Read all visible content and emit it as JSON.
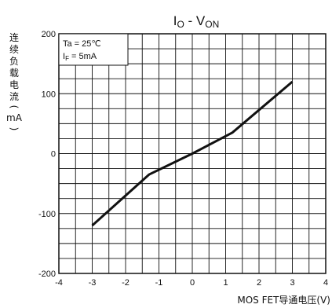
{
  "chart_data": {
    "type": "line",
    "title": {
      "main": "I",
      "sub1": "O",
      "sep": " - V",
      "sub2": "ON"
    },
    "ylabel": {
      "text": "连续负载电流",
      "unit": "mA"
    },
    "xlabel": "MOS FET导通电压(V)",
    "conditions": [
      {
        "prefix": "Ta = 25",
        "suffix": "℃",
        "sub": ""
      },
      {
        "prefix": "I",
        "sub": "F",
        "suffix": " = 5mA"
      }
    ],
    "xlim": [
      -4,
      4
    ],
    "ylim": [
      -200,
      200
    ],
    "xticks": [
      -4,
      -3,
      -2,
      -1,
      0,
      1,
      2,
      3,
      4
    ],
    "yticks": [
      -200,
      -100,
      0,
      100,
      200
    ],
    "grid": true,
    "series": [
      {
        "x": [
          -3,
          -1.3,
          0,
          1.2,
          3
        ],
        "y": [
          -120,
          -35,
          0,
          35,
          120
        ]
      }
    ]
  }
}
